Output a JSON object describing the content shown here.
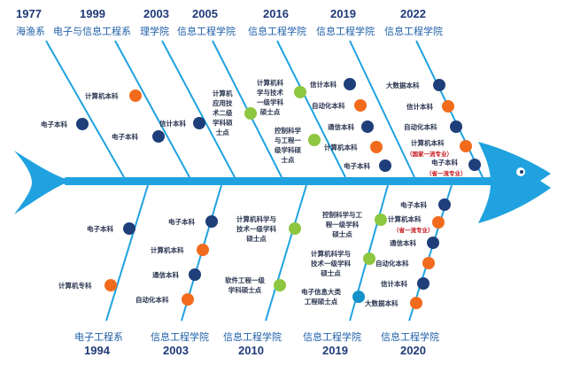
{
  "colors": {
    "spine": "#1fa2df",
    "dot_navy": "#1f3f7a",
    "dot_orange": "#f26b1d",
    "dot_green": "#8dc63f",
    "dot_cyan": "#1592c9",
    "year_text": "#1f3a78",
    "dept_text": "#1f5fa8",
    "note_red": "#c4161c"
  },
  "top_milestones": [
    {
      "year": "1977",
      "dept": "海渔系"
    },
    {
      "year": "1999",
      "dept": "电子与信息工程系"
    },
    {
      "year": "2003",
      "dept": "理学院"
    },
    {
      "year": "2005",
      "dept": "信息工程学院"
    },
    {
      "year": "2016",
      "dept": "信息工程学院"
    },
    {
      "year": "2019",
      "dept": "信息工程学院"
    },
    {
      "year": "2022",
      "dept": "信息工程学院"
    }
  ],
  "bottom_milestones": [
    {
      "year": "1994",
      "dept": "电子工程系"
    },
    {
      "year": "2003",
      "dept": "信息工程学院"
    },
    {
      "year": "2010",
      "dept": "信息工程学院"
    },
    {
      "year": "2019",
      "dept": "信息工程学院"
    },
    {
      "year": "2020",
      "dept": "信息工程学院"
    }
  ],
  "programs": {
    "t1977_1": "电子本科",
    "t1999_1": "计算机本科",
    "t1999_2": "电子本科",
    "t2003_1": "信计本科",
    "t2005_1": "计算机\n应用技\n术二级\n学科硕\n士点",
    "t2016_1": "计算机科\n学与技术\n一级学科\n硕士点",
    "t2016_2": "控制科学\n与工程一\n级学科硕\n士点",
    "t2019_1": "信计本科",
    "t2019_2": "自动化本科",
    "t2019_3": "通信本科",
    "t2019_4": "计算机本科",
    "t2019_5": "电子本科",
    "t2022_1": "大数据本科",
    "t2022_2": "信计本科",
    "t2022_3": "自动化本科",
    "t2022_4": "计算机本科",
    "t2022_4_note": "（国家一流专业）",
    "t2022_5": "电子本科",
    "t2022_5_note": "（省一流专业）",
    "b1994_1": "电子本科",
    "b1994_2": "计算机专科",
    "b2003_1": "电子本科",
    "b2003_2": "计算机本科",
    "b2003_3": "通信本科",
    "b2003_4": "自动化本科",
    "b2010_1": "计算机科学与\n技术一级学科\n硕士点",
    "b2010_2": "软件工程一级\n学科硕士点",
    "b2019_1": "控制科学与工\n程一级学科\n硕士点",
    "b2019_2": "计算机科学与\n技术一级学科\n硕士点",
    "b2019_3": "电子信息大类\n工程硕士点",
    "b2020_1": "电子本科",
    "b2020_2": "计算机本科",
    "b2020_2_note": "（省一流专业）",
    "b2020_3": "通信本科",
    "b2020_4": "自动化本科",
    "b2020_5": "信计本科",
    "b2020_6": "大数据本科"
  }
}
